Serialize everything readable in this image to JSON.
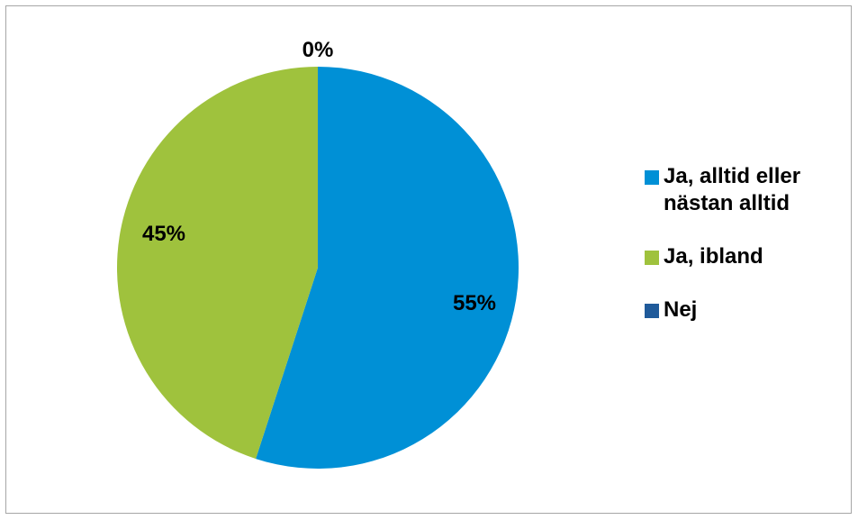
{
  "chart_data": {
    "type": "pie",
    "title": "",
    "categories": [
      "Ja, alltid eller nästan alltid",
      "Ja, ibland",
      "Nej"
    ],
    "values": [
      55,
      45,
      0
    ],
    "value_labels": [
      "55%",
      "45%",
      "0%"
    ],
    "colors": [
      "#0090D6",
      "#9FC23D",
      "#1F5A9A"
    ],
    "legend_position": "right",
    "start_angle": "top, clockwise"
  }
}
